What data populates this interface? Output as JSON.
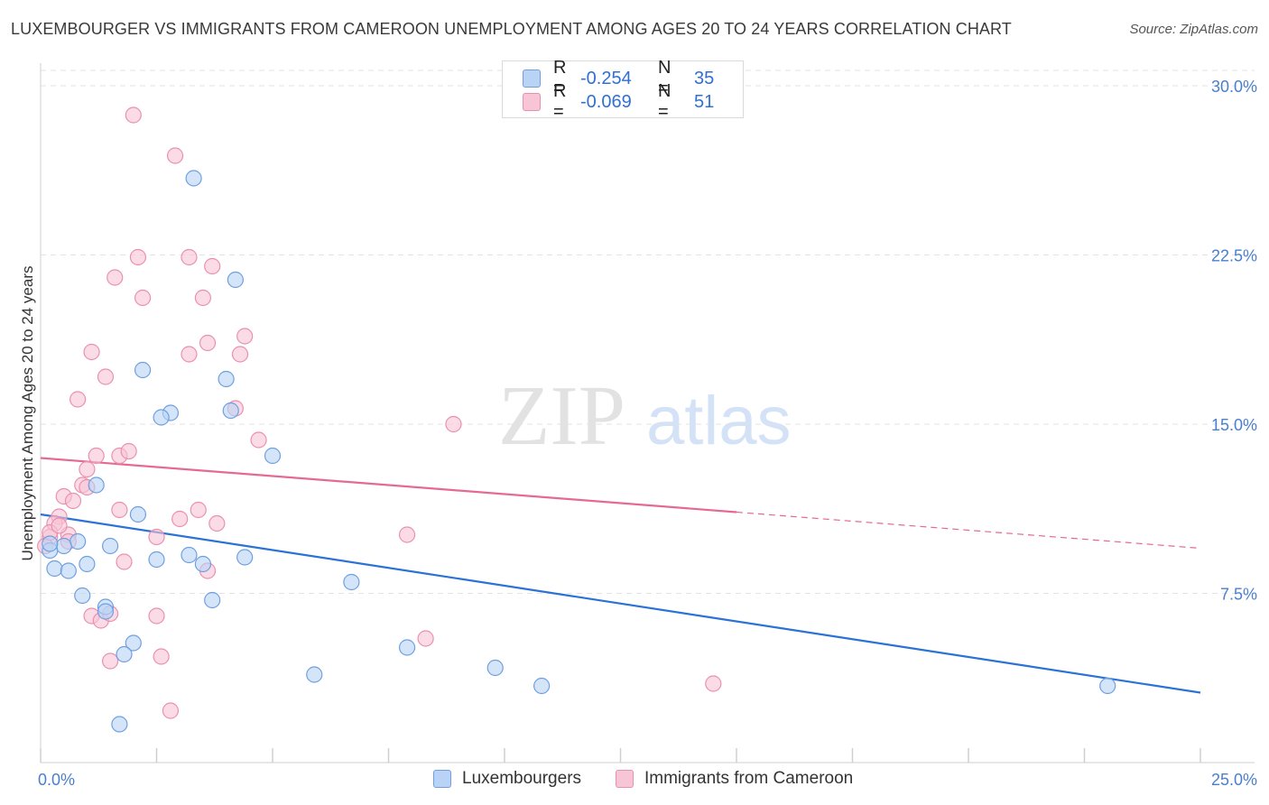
{
  "title": "LUXEMBOURGER VS IMMIGRANTS FROM CAMEROON UNEMPLOYMENT AMONG AGES 20 TO 24 YEARS CORRELATION CHART",
  "source": "Source: ZipAtlas.com",
  "watermark": {
    "zip": "ZIP",
    "atlas": "atlas"
  },
  "legend_stats": [
    {
      "r_label": "R =",
      "r_value": "-0.254",
      "n_label": "N =",
      "n_value": "35"
    },
    {
      "r_label": "R =",
      "r_value": "-0.069",
      "n_label": "N =",
      "n_value": "51"
    }
  ],
  "colors": {
    "lux_fill": "#b8d3f5",
    "lux_stroke": "#6f9fe0",
    "lux_line": "#2a72d6",
    "cam_fill": "#f8c5d6",
    "cam_stroke": "#ea90ae",
    "cam_line": "#e56a92",
    "grid": "#e3e3e3",
    "tick_text": "#4a7fcf"
  },
  "chart_data": {
    "type": "scatter",
    "title": "LUXEMBOURGER VS IMMIGRANTS FROM CAMEROON UNEMPLOYMENT AMONG AGES 20 TO 24 YEARS CORRELATION CHART",
    "xlabel": "",
    "ylabel": "Unemployment Among Ages 20 to 24 years",
    "xlim": [
      0,
      25
    ],
    "ylim": [
      0,
      31
    ],
    "x_tick_labels": [
      "0.0%",
      "25.0%"
    ],
    "y_ticks": [
      7.5,
      15.0,
      22.5,
      30.0
    ],
    "y_tick_labels": [
      "7.5%",
      "15.0%",
      "22.5%",
      "30.0%"
    ],
    "grid": true,
    "legend_position": "bottom",
    "series": [
      {
        "name": "Luxembourgers",
        "points": [
          [
            3.3,
            25.9
          ],
          [
            4.2,
            21.4
          ],
          [
            2.2,
            17.4
          ],
          [
            4.0,
            17.0
          ],
          [
            2.8,
            15.5
          ],
          [
            2.6,
            15.3
          ],
          [
            4.1,
            15.6
          ],
          [
            5.0,
            13.6
          ],
          [
            1.2,
            12.3
          ],
          [
            2.1,
            11.0
          ],
          [
            0.8,
            9.8
          ],
          [
            0.5,
            9.6
          ],
          [
            0.2,
            9.4
          ],
          [
            0.2,
            9.7
          ],
          [
            0.3,
            8.6
          ],
          [
            0.6,
            8.5
          ],
          [
            1.0,
            8.8
          ],
          [
            1.5,
            9.6
          ],
          [
            2.5,
            9.0
          ],
          [
            3.2,
            9.2
          ],
          [
            3.5,
            8.8
          ],
          [
            4.4,
            9.1
          ],
          [
            6.7,
            8.0
          ],
          [
            0.9,
            7.4
          ],
          [
            3.7,
            7.2
          ],
          [
            1.4,
            6.9
          ],
          [
            1.4,
            6.7
          ],
          [
            2.0,
            5.3
          ],
          [
            1.8,
            4.8
          ],
          [
            7.9,
            5.1
          ],
          [
            5.9,
            3.9
          ],
          [
            9.8,
            4.2
          ],
          [
            10.8,
            3.4
          ],
          [
            23.0,
            3.4
          ],
          [
            1.7,
            1.7
          ]
        ],
        "trend": {
          "x": [
            0,
            25
          ],
          "y": [
            11.0,
            3.1
          ]
        }
      },
      {
        "name": "Immigrants from Cameroon",
        "points": [
          [
            2.0,
            28.7
          ],
          [
            2.9,
            26.9
          ],
          [
            2.1,
            22.4
          ],
          [
            3.2,
            22.4
          ],
          [
            3.7,
            22.0
          ],
          [
            1.6,
            21.5
          ],
          [
            2.2,
            20.6
          ],
          [
            3.5,
            20.6
          ],
          [
            4.4,
            18.9
          ],
          [
            1.1,
            18.2
          ],
          [
            3.2,
            18.1
          ],
          [
            3.6,
            18.6
          ],
          [
            4.3,
            18.1
          ],
          [
            1.4,
            17.1
          ],
          [
            0.8,
            16.1
          ],
          [
            4.2,
            15.7
          ],
          [
            8.9,
            15.0
          ],
          [
            4.7,
            14.3
          ],
          [
            1.2,
            13.6
          ],
          [
            1.7,
            13.6
          ],
          [
            1.9,
            13.8
          ],
          [
            1.0,
            13.0
          ],
          [
            0.9,
            12.3
          ],
          [
            1.0,
            12.2
          ],
          [
            0.5,
            11.8
          ],
          [
            0.7,
            11.6
          ],
          [
            1.7,
            11.2
          ],
          [
            3.4,
            11.2
          ],
          [
            0.4,
            10.9
          ],
          [
            0.3,
            10.6
          ],
          [
            0.6,
            10.1
          ],
          [
            3.0,
            10.8
          ],
          [
            3.8,
            10.6
          ],
          [
            0.2,
            10.0
          ],
          [
            2.5,
            10.0
          ],
          [
            7.9,
            10.1
          ],
          [
            0.6,
            9.8
          ],
          [
            0.1,
            9.6
          ],
          [
            1.8,
            8.9
          ],
          [
            3.6,
            8.5
          ],
          [
            1.1,
            6.5
          ],
          [
            1.3,
            6.3
          ],
          [
            1.5,
            6.6
          ],
          [
            2.5,
            6.5
          ],
          [
            8.3,
            5.5
          ],
          [
            1.5,
            4.5
          ],
          [
            2.6,
            4.7
          ],
          [
            14.5,
            3.5
          ],
          [
            2.8,
            2.3
          ],
          [
            0.2,
            10.2
          ],
          [
            0.4,
            10.5
          ]
        ],
        "trend": {
          "x": [
            0,
            15
          ],
          "y": [
            13.5,
            11.1
          ]
        },
        "trend_extension": {
          "x": [
            15,
            25
          ],
          "y": [
            11.1,
            9.5
          ]
        }
      }
    ]
  },
  "legend_bottom": [
    {
      "label": "Luxembourgers"
    },
    {
      "label": "Immigrants from Cameroon"
    }
  ]
}
